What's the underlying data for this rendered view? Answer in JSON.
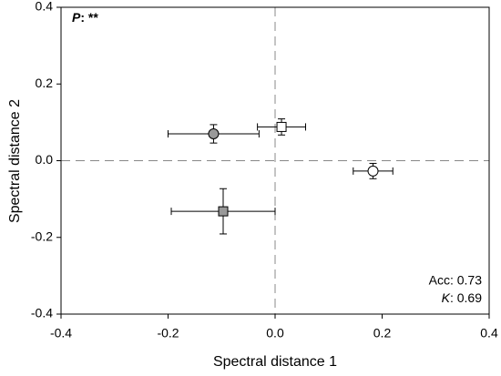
{
  "chart_data": {
    "type": "scatter",
    "xlabel": "Spectral distance 1",
    "ylabel": "Spectral distance 2",
    "xlim": [
      -0.4,
      0.4
    ],
    "ylim": [
      -0.4,
      0.4
    ],
    "xticks": [
      -0.4,
      -0.2,
      {
        "value": 0,
        "label": "0.0"
      },
      0.2,
      0.4
    ],
    "yticks": [
      -0.4,
      -0.2,
      {
        "value": 0,
        "label": "0.0"
      },
      0.2,
      0.4
    ],
    "reference_lines": {
      "x": [
        0
      ],
      "y": [
        0
      ]
    },
    "points": [
      {
        "x": -0.115,
        "y": 0.07,
        "xerr": 0.085,
        "yerr": 0.024,
        "marker": "circle",
        "color": "#999999"
      },
      {
        "x": 0.012,
        "y": 0.088,
        "xerr": 0.045,
        "yerr": 0.021,
        "marker": "square",
        "color": "#ffffff"
      },
      {
        "x": 0.183,
        "y": -0.027,
        "xerr": 0.037,
        "yerr": 0.02,
        "marker": "circle",
        "color": "#ffffff"
      },
      {
        "x": -0.097,
        "y": -0.132,
        "xerr": 0.097,
        "yerr": 0.059,
        "marker": "square",
        "color": "#999999"
      }
    ],
    "annotations": [
      {
        "italic": "P",
        "text": ": **"
      },
      {
        "text": "Acc: 0.73"
      },
      {
        "italic": "K",
        "text": ": 0.69"
      }
    ]
  }
}
